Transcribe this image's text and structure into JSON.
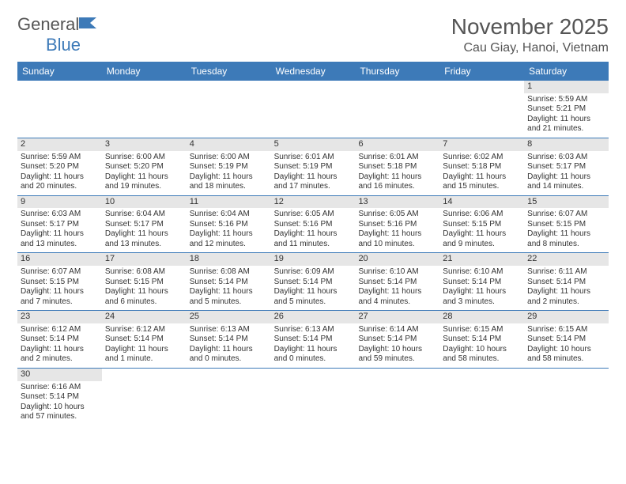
{
  "brand": {
    "name_a": "General",
    "name_b": "Blue"
  },
  "title": "November 2025",
  "location": "Cau Giay, Hanoi, Vietnam",
  "colors": {
    "header_blue": "#3d7ab8",
    "gray_bar": "#e6e6e6",
    "text": "#333333",
    "subtext": "#555555",
    "background": "#ffffff"
  },
  "day_headers": [
    "Sunday",
    "Monday",
    "Tuesday",
    "Wednesday",
    "Thursday",
    "Friday",
    "Saturday"
  ],
  "weeks": [
    [
      null,
      null,
      null,
      null,
      null,
      null,
      {
        "n": "1",
        "rise": "Sunrise: 5:59 AM",
        "set": "Sunset: 5:21 PM",
        "day": "Daylight: 11 hours and 21 minutes."
      }
    ],
    [
      {
        "n": "2",
        "rise": "Sunrise: 5:59 AM",
        "set": "Sunset: 5:20 PM",
        "day": "Daylight: 11 hours and 20 minutes."
      },
      {
        "n": "3",
        "rise": "Sunrise: 6:00 AM",
        "set": "Sunset: 5:20 PM",
        "day": "Daylight: 11 hours and 19 minutes."
      },
      {
        "n": "4",
        "rise": "Sunrise: 6:00 AM",
        "set": "Sunset: 5:19 PM",
        "day": "Daylight: 11 hours and 18 minutes."
      },
      {
        "n": "5",
        "rise": "Sunrise: 6:01 AM",
        "set": "Sunset: 5:19 PM",
        "day": "Daylight: 11 hours and 17 minutes."
      },
      {
        "n": "6",
        "rise": "Sunrise: 6:01 AM",
        "set": "Sunset: 5:18 PM",
        "day": "Daylight: 11 hours and 16 minutes."
      },
      {
        "n": "7",
        "rise": "Sunrise: 6:02 AM",
        "set": "Sunset: 5:18 PM",
        "day": "Daylight: 11 hours and 15 minutes."
      },
      {
        "n": "8",
        "rise": "Sunrise: 6:03 AM",
        "set": "Sunset: 5:17 PM",
        "day": "Daylight: 11 hours and 14 minutes."
      }
    ],
    [
      {
        "n": "9",
        "rise": "Sunrise: 6:03 AM",
        "set": "Sunset: 5:17 PM",
        "day": "Daylight: 11 hours and 13 minutes."
      },
      {
        "n": "10",
        "rise": "Sunrise: 6:04 AM",
        "set": "Sunset: 5:17 PM",
        "day": "Daylight: 11 hours and 13 minutes."
      },
      {
        "n": "11",
        "rise": "Sunrise: 6:04 AM",
        "set": "Sunset: 5:16 PM",
        "day": "Daylight: 11 hours and 12 minutes."
      },
      {
        "n": "12",
        "rise": "Sunrise: 6:05 AM",
        "set": "Sunset: 5:16 PM",
        "day": "Daylight: 11 hours and 11 minutes."
      },
      {
        "n": "13",
        "rise": "Sunrise: 6:05 AM",
        "set": "Sunset: 5:16 PM",
        "day": "Daylight: 11 hours and 10 minutes."
      },
      {
        "n": "14",
        "rise": "Sunrise: 6:06 AM",
        "set": "Sunset: 5:15 PM",
        "day": "Daylight: 11 hours and 9 minutes."
      },
      {
        "n": "15",
        "rise": "Sunrise: 6:07 AM",
        "set": "Sunset: 5:15 PM",
        "day": "Daylight: 11 hours and 8 minutes."
      }
    ],
    [
      {
        "n": "16",
        "rise": "Sunrise: 6:07 AM",
        "set": "Sunset: 5:15 PM",
        "day": "Daylight: 11 hours and 7 minutes."
      },
      {
        "n": "17",
        "rise": "Sunrise: 6:08 AM",
        "set": "Sunset: 5:15 PM",
        "day": "Daylight: 11 hours and 6 minutes."
      },
      {
        "n": "18",
        "rise": "Sunrise: 6:08 AM",
        "set": "Sunset: 5:14 PM",
        "day": "Daylight: 11 hours and 5 minutes."
      },
      {
        "n": "19",
        "rise": "Sunrise: 6:09 AM",
        "set": "Sunset: 5:14 PM",
        "day": "Daylight: 11 hours and 5 minutes."
      },
      {
        "n": "20",
        "rise": "Sunrise: 6:10 AM",
        "set": "Sunset: 5:14 PM",
        "day": "Daylight: 11 hours and 4 minutes."
      },
      {
        "n": "21",
        "rise": "Sunrise: 6:10 AM",
        "set": "Sunset: 5:14 PM",
        "day": "Daylight: 11 hours and 3 minutes."
      },
      {
        "n": "22",
        "rise": "Sunrise: 6:11 AM",
        "set": "Sunset: 5:14 PM",
        "day": "Daylight: 11 hours and 2 minutes."
      }
    ],
    [
      {
        "n": "23",
        "rise": "Sunrise: 6:12 AM",
        "set": "Sunset: 5:14 PM",
        "day": "Daylight: 11 hours and 2 minutes."
      },
      {
        "n": "24",
        "rise": "Sunrise: 6:12 AM",
        "set": "Sunset: 5:14 PM",
        "day": "Daylight: 11 hours and 1 minute."
      },
      {
        "n": "25",
        "rise": "Sunrise: 6:13 AM",
        "set": "Sunset: 5:14 PM",
        "day": "Daylight: 11 hours and 0 minutes."
      },
      {
        "n": "26",
        "rise": "Sunrise: 6:13 AM",
        "set": "Sunset: 5:14 PM",
        "day": "Daylight: 11 hours and 0 minutes."
      },
      {
        "n": "27",
        "rise": "Sunrise: 6:14 AM",
        "set": "Sunset: 5:14 PM",
        "day": "Daylight: 10 hours and 59 minutes."
      },
      {
        "n": "28",
        "rise": "Sunrise: 6:15 AM",
        "set": "Sunset: 5:14 PM",
        "day": "Daylight: 10 hours and 58 minutes."
      },
      {
        "n": "29",
        "rise": "Sunrise: 6:15 AM",
        "set": "Sunset: 5:14 PM",
        "day": "Daylight: 10 hours and 58 minutes."
      }
    ],
    [
      {
        "n": "30",
        "rise": "Sunrise: 6:16 AM",
        "set": "Sunset: 5:14 PM",
        "day": "Daylight: 10 hours and 57 minutes."
      },
      null,
      null,
      null,
      null,
      null,
      null
    ]
  ]
}
